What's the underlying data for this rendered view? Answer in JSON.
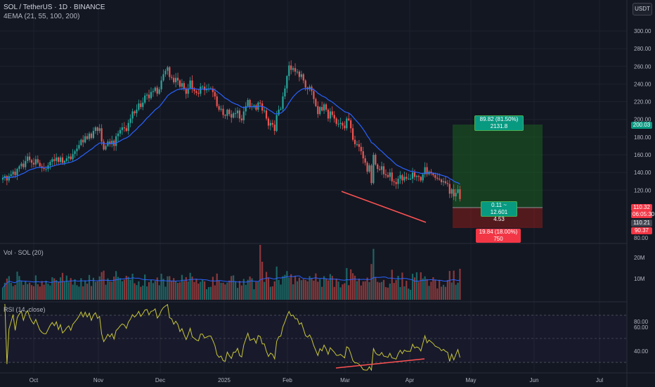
{
  "header": {
    "symbol_line": "SOL / TetherUS · 1D · BINANCE",
    "indicator": "4EMA (21, 55, 100, 200)",
    "currency": "USDT"
  },
  "panes": {
    "volume_label": "Vol · SOL (20)",
    "rsi_label": "RSI (14, close)"
  },
  "price_axis": {
    "ticks": [
      "300.00",
      "280.00",
      "260.00",
      "240.00",
      "220.00",
      "200.00",
      "180.00",
      "160.00",
      "140.00",
      "120.00",
      "80.00"
    ]
  },
  "volume_axis": {
    "ticks": [
      "20M",
      "10M"
    ]
  },
  "rsi_axis": {
    "ticks": [
      "80.00",
      "60.00",
      "40.00"
    ]
  },
  "time_axis": {
    "ticks": [
      "Oct",
      "Nov",
      "Dec",
      "2025",
      "Feb",
      "Mar",
      "Apr",
      "May",
      "Jun",
      "Jul"
    ]
  },
  "position_tool": {
    "target_label": "89.82 (81.50%) 2131.8",
    "center_line1": "0.11 ~ 12.601",
    "center_line2": "4.53",
    "stop_label": "19.84 (18.00%) 750"
  },
  "price_tags": {
    "target": "200.03",
    "current_price": "110.32",
    "countdown": "06:05:30",
    "entry": "110.21",
    "stop": "90.37"
  },
  "colors": {
    "up": "#26a69a",
    "down": "#ef5350",
    "ema": "#2962ff",
    "rsi": "#c9c63a",
    "bg": "#131722"
  },
  "chart_data": {
    "type": "candlestick",
    "close": [
      134,
      136,
      131,
      136,
      138,
      141,
      137,
      144,
      147,
      150,
      146,
      153,
      158,
      154,
      151,
      149,
      155,
      151,
      147,
      145,
      144,
      144,
      148,
      152,
      155,
      153,
      157,
      152,
      157,
      151,
      153,
      156,
      158,
      155,
      161,
      164,
      167,
      171,
      177,
      174,
      181,
      178,
      184,
      179,
      187,
      191,
      187,
      190,
      175,
      166,
      170,
      175,
      172,
      176,
      170,
      181,
      184,
      188,
      191,
      190,
      187,
      196,
      201,
      209,
      207,
      211,
      218,
      214,
      219,
      227,
      228,
      224,
      231,
      232,
      236,
      229,
      234,
      244,
      251,
      255,
      259,
      248,
      247,
      242,
      247,
      244,
      237,
      241,
      235,
      229,
      235,
      244,
      234,
      232,
      230,
      229,
      237,
      237,
      233,
      234,
      235,
      235,
      231,
      226,
      215,
      211,
      212,
      205,
      204,
      211,
      206,
      202,
      207,
      207,
      210,
      201,
      199,
      209,
      215,
      222,
      214,
      215,
      216,
      211,
      219,
      218,
      210,
      210,
      201,
      193,
      196,
      194,
      187,
      205,
      211,
      212,
      226,
      235,
      249,
      261,
      256,
      258,
      254,
      254,
      248,
      251,
      244,
      236,
      234,
      237,
      232,
      223,
      215,
      206,
      214,
      210,
      217,
      211,
      201,
      209,
      205,
      201,
      195,
      195,
      196,
      193,
      190,
      201,
      199,
      190,
      177,
      172,
      172,
      169,
      164,
      156,
      151,
      141,
      148,
      128,
      160,
      149,
      144,
      143,
      147,
      138,
      137,
      135,
      140,
      130,
      129,
      127,
      133,
      137,
      131,
      135,
      133,
      133,
      133,
      140,
      135,
      136,
      135,
      131,
      138,
      146,
      138,
      141,
      139,
      137,
      134,
      133,
      132,
      129,
      130,
      128,
      127,
      116,
      121,
      113,
      117,
      121,
      110
    ],
    "ema21_approx": [
      132,
      178,
      220,
      240,
      224,
      199,
      205,
      244,
      180,
      144,
      130,
      120
    ]
  }
}
